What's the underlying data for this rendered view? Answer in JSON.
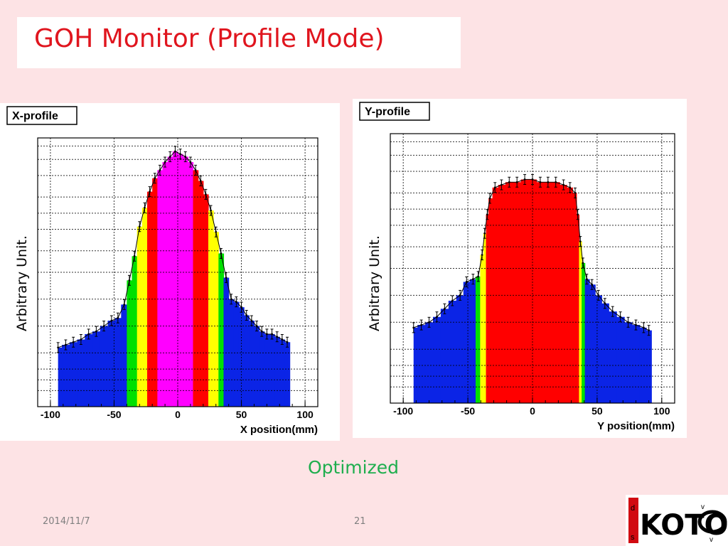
{
  "slide": {
    "title": "GOH Monitor (Profile Mode)",
    "subtitle": "Optimized",
    "date": "2014/11/7",
    "page_number": "21",
    "title_color": "#e0151e",
    "subtitle_color": "#1fae4e",
    "background": "#fde3e5"
  },
  "logo": {
    "text": "KOTO",
    "marks": [
      "d",
      "s",
      "v",
      "v"
    ],
    "icon": "koto-logo"
  },
  "chart_data": [
    {
      "type": "area",
      "legend_title": "X-profile",
      "xlabel": "X position(mm)",
      "ylabel": "Arbitrary Unit.",
      "xlim": [
        -110,
        110
      ],
      "ylim": [
        0,
        1
      ],
      "x_ticks": [
        -100,
        -50,
        0,
        50,
        100
      ],
      "grid": true,
      "error_bars": true,
      "x": [
        -94,
        -88,
        -82,
        -76,
        -70,
        -64,
        -58,
        -52,
        -47,
        -42,
        -38,
        -34,
        -30,
        -26,
        -22,
        -18,
        -14,
        -10,
        -6,
        -2,
        2,
        6,
        10,
        14,
        18,
        22,
        26,
        30,
        34,
        38,
        42,
        46,
        50,
        54,
        58,
        62,
        66,
        70,
        74,
        78,
        82,
        86
      ],
      "values": [
        0.22,
        0.23,
        0.24,
        0.25,
        0.27,
        0.28,
        0.3,
        0.32,
        0.33,
        0.38,
        0.47,
        0.56,
        0.67,
        0.74,
        0.8,
        0.85,
        0.88,
        0.91,
        0.93,
        0.95,
        0.94,
        0.93,
        0.91,
        0.88,
        0.84,
        0.79,
        0.73,
        0.65,
        0.57,
        0.48,
        0.4,
        0.39,
        0.37,
        0.34,
        0.32,
        0.3,
        0.28,
        0.27,
        0.27,
        0.26,
        0.25,
        0.24
      ],
      "color_bands": [
        {
          "from": -94,
          "to": -38,
          "color": "#0b24e6"
        },
        {
          "from": -38,
          "to": -32,
          "color": "#00e000"
        },
        {
          "from": -32,
          "to": -23,
          "color": "#ffff00"
        },
        {
          "from": -23,
          "to": -14,
          "color": "#ff0000"
        },
        {
          "from": -14,
          "to": 14,
          "color": "#ff00ff"
        },
        {
          "from": 14,
          "to": 23,
          "color": "#ff0000"
        },
        {
          "from": 23,
          "to": 32,
          "color": "#ffff00"
        },
        {
          "from": 32,
          "to": 38,
          "color": "#00e000"
        },
        {
          "from": 38,
          "to": 86,
          "color": "#0b24e6"
        }
      ]
    },
    {
      "type": "area",
      "legend_title": "Y-profile",
      "xlabel": "Y position(mm)",
      "ylabel": "Arbitrary Unit.",
      "xlim": [
        -110,
        110
      ],
      "ylim": [
        0,
        1
      ],
      "x_ticks": [
        -100,
        -50,
        0,
        50,
        100
      ],
      "grid": true,
      "error_bars": true,
      "x": [
        -92,
        -86,
        -80,
        -74,
        -68,
        -62,
        -56,
        -51,
        -46,
        -42,
        -39,
        -37,
        -35,
        -33,
        -29,
        -24,
        -18,
        -12,
        -6,
        0,
        6,
        12,
        18,
        24,
        29,
        33,
        35,
        37,
        39,
        42,
        46,
        51,
        56,
        62,
        68,
        74,
        80,
        86,
        90
      ],
      "values": [
        0.28,
        0.29,
        0.3,
        0.32,
        0.35,
        0.38,
        0.4,
        0.45,
        0.46,
        0.47,
        0.55,
        0.63,
        0.7,
        0.76,
        0.8,
        0.81,
        0.82,
        0.82,
        0.83,
        0.83,
        0.82,
        0.82,
        0.82,
        0.81,
        0.8,
        0.78,
        0.7,
        0.6,
        0.52,
        0.46,
        0.44,
        0.4,
        0.37,
        0.34,
        0.32,
        0.3,
        0.29,
        0.28,
        0.27
      ],
      "color_bands": [
        {
          "from": -92,
          "to": -42,
          "color": "#0b24e6"
        },
        {
          "from": -42,
          "to": -39,
          "color": "#00e000"
        },
        {
          "from": -39,
          "to": -36,
          "color": "#ffff00"
        },
        {
          "from": -36,
          "to": 36,
          "color": "#ff0000"
        },
        {
          "from": 36,
          "to": 39,
          "color": "#ffff00"
        },
        {
          "from": 39,
          "to": 42,
          "color": "#00e000"
        },
        {
          "from": 42,
          "to": 90,
          "color": "#0b24e6"
        }
      ]
    }
  ]
}
